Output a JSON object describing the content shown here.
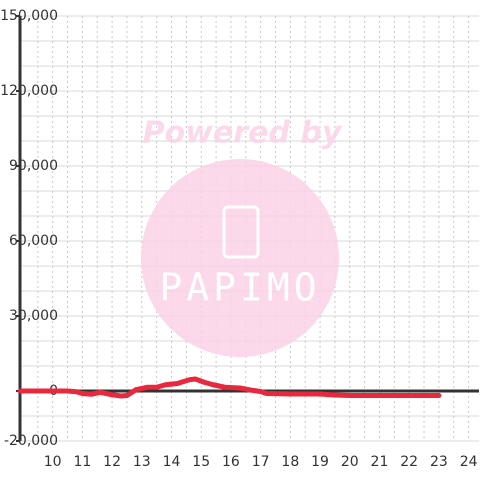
{
  "chart_data": {
    "type": "line",
    "watermark": {
      "top": "Powered by",
      "brand": "PAPIMO"
    },
    "x": [
      8.9,
      10,
      10.5,
      10.8,
      11,
      11.3,
      11.6,
      12,
      12.3,
      12.5,
      12.8,
      13.2,
      13.5,
      13.8,
      14.2,
      14.6,
      14.8,
      15.1,
      15.4,
      15.8,
      16.3,
      16.7,
      17,
      17.2,
      18,
      19,
      19.5,
      20,
      21,
      22,
      23
    ],
    "series": [
      {
        "color": "#e8283c",
        "values": [
          0,
          0,
          0,
          -300,
          -1000,
          -1300,
          -500,
          -1500,
          -2000,
          -1800,
          500,
          1500,
          1500,
          2500,
          3000,
          4500,
          4800,
          3500,
          2500,
          1500,
          1200,
          300,
          -200,
          -1000,
          -1200,
          -1200,
          -1600,
          -1800,
          -1800,
          -1800,
          -1800
        ]
      }
    ],
    "xlim": [
      8.9,
      24.35
    ],
    "xticks": [
      10,
      11,
      12,
      13,
      14,
      15,
      16,
      17,
      18,
      19,
      20,
      21,
      22,
      23,
      24
    ],
    "xminorticks": [
      9.5,
      10.5,
      11.5,
      12.5,
      13.5,
      14.5,
      15.5,
      16.5,
      17.5,
      18.5,
      19.5,
      20.5,
      21.5,
      22.5,
      23.5
    ],
    "ylim": [
      -20000,
      150000
    ],
    "yticks": [
      {
        "value": -20000,
        "label": "-20,000"
      },
      0,
      {
        "value": 30000,
        "label": "30,000"
      },
      {
        "value": 60000,
        "label": "60,000"
      },
      {
        "value": 90000,
        "label": "90,000"
      },
      {
        "value": 120000,
        "label": "120,000"
      },
      {
        "value": 150000,
        "label": "150,000"
      }
    ],
    "yminorticks": [
      -10000,
      10000,
      20000,
      40000,
      50000,
      70000,
      80000,
      100000,
      110000,
      130000,
      140000
    ],
    "grid": true
  }
}
